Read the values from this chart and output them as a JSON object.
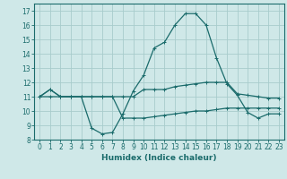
{
  "title": "",
  "xlabel": "Humidex (Indice chaleur)",
  "ylabel": "",
  "xlim": [
    -0.5,
    23.5
  ],
  "ylim": [
    8,
    17.5
  ],
  "yticks": [
    8,
    9,
    10,
    11,
    12,
    13,
    14,
    15,
    16,
    17
  ],
  "xticks": [
    0,
    1,
    2,
    3,
    4,
    5,
    6,
    7,
    8,
    9,
    10,
    11,
    12,
    13,
    14,
    15,
    16,
    17,
    18,
    19,
    20,
    21,
    22,
    23
  ],
  "bg_color": "#cfe8e8",
  "grid_color": "#a8cccc",
  "line_color": "#1a6b6b",
  "line1": [
    11,
    11.5,
    11,
    11,
    11,
    8.8,
    8.4,
    8.5,
    9.8,
    11.4,
    12.5,
    14.4,
    14.8,
    16.0,
    16.8,
    16.8,
    16.0,
    13.7,
    11.9,
    11.1,
    9.9,
    9.5,
    9.8,
    9.8
  ],
  "line2": [
    11,
    11.5,
    11,
    11,
    11,
    11,
    11,
    11,
    11,
    11,
    11.5,
    11.5,
    11.5,
    11.7,
    11.8,
    11.9,
    12.0,
    12.0,
    12.0,
    11.2,
    11.1,
    11.0,
    10.9,
    10.9
  ],
  "line3": [
    11,
    11,
    11,
    11,
    11,
    11,
    11,
    11,
    9.5,
    9.5,
    9.5,
    9.6,
    9.7,
    9.8,
    9.9,
    10.0,
    10.0,
    10.1,
    10.2,
    10.2,
    10.2,
    10.2,
    10.2,
    10.2
  ]
}
